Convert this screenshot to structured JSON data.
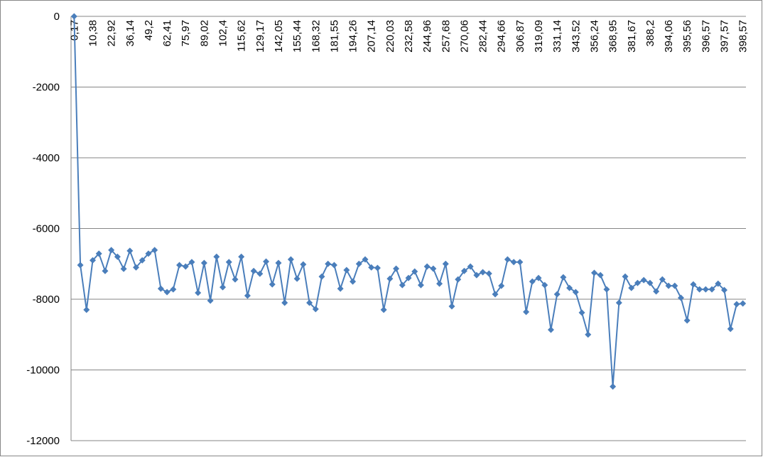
{
  "chart_data": {
    "type": "line",
    "categories": [
      "0,17",
      null,
      null,
      "10,38",
      null,
      null,
      "22,92",
      null,
      null,
      "36,14",
      null,
      null,
      "49,2",
      null,
      null,
      "62,41",
      null,
      null,
      "75,97",
      null,
      null,
      "89,02",
      null,
      null,
      "102,4",
      null,
      null,
      "115,62",
      null,
      null,
      "129,17",
      null,
      null,
      "142,05",
      null,
      null,
      "155,44",
      null,
      null,
      "168,32",
      null,
      null,
      "181,55",
      null,
      null,
      "194,26",
      null,
      null,
      "207,14",
      null,
      null,
      "220,03",
      null,
      null,
      "232,58",
      null,
      null,
      "244,96",
      null,
      null,
      "257,68",
      null,
      null,
      "270,06",
      null,
      null,
      "282,44",
      null,
      null,
      "294,66",
      null,
      null,
      "306,87",
      null,
      null,
      "319,09",
      null,
      null,
      "331,14",
      null,
      null,
      "343,52",
      null,
      null,
      "356,24",
      null,
      null,
      "368,95",
      null,
      null,
      "381,67",
      null,
      null,
      "388,2",
      null,
      null,
      "394,06",
      null,
      null,
      "395,56",
      null,
      null,
      "396,57",
      null,
      null,
      "397,57",
      null,
      null,
      "398,57"
    ],
    "series": [
      {
        "color": "#4a7ebb",
        "values": [
          0,
          -7035,
          -8300,
          -6900,
          -6710,
          -7200,
          -6610,
          -6800,
          -7140,
          -6630,
          -7100,
          -6900,
          -6710,
          -6610,
          -7700,
          -7800,
          -7720,
          -7035,
          -7075,
          -6950,
          -7820,
          -6975,
          -8040,
          -6800,
          -7660,
          -6950,
          -7440,
          -6800,
          -7900,
          -7200,
          -7280,
          -6935,
          -7580,
          -6975,
          -8100,
          -6875,
          -7420,
          -7015,
          -8100,
          -8280,
          -7360,
          -7000,
          -7035,
          -7700,
          -7175,
          -7500,
          -7000,
          -6875,
          -7100,
          -7115,
          -8300,
          -7420,
          -7135,
          -7600,
          -7400,
          -7215,
          -7600,
          -7075,
          -7135,
          -7560,
          -7000,
          -8200,
          -7440,
          -7200,
          -7075,
          -7320,
          -7235,
          -7275,
          -7860,
          -7620,
          -6875,
          -6950,
          -6950,
          -8360,
          -7500,
          -7400,
          -7600,
          -8865,
          -7860,
          -7380,
          -7680,
          -7800,
          -8380,
          -9000,
          -7255,
          -7320,
          -7720,
          -10470,
          -8100,
          -7360,
          -7680,
          -7540,
          -7460,
          -7540,
          -7780,
          -7440,
          -7620,
          -7620,
          -7960,
          -8600,
          -7580,
          -7720,
          -7720,
          -7720,
          -7560,
          -7740,
          -8840,
          -8140,
          -8120
        ]
      }
    ],
    "ylim": [
      -12000,
      0
    ],
    "yticks": [
      0,
      -2000,
      -4000,
      -6000,
      -8000,
      -10000,
      -12000
    ],
    "grid": true,
    "marker": "diamond"
  }
}
